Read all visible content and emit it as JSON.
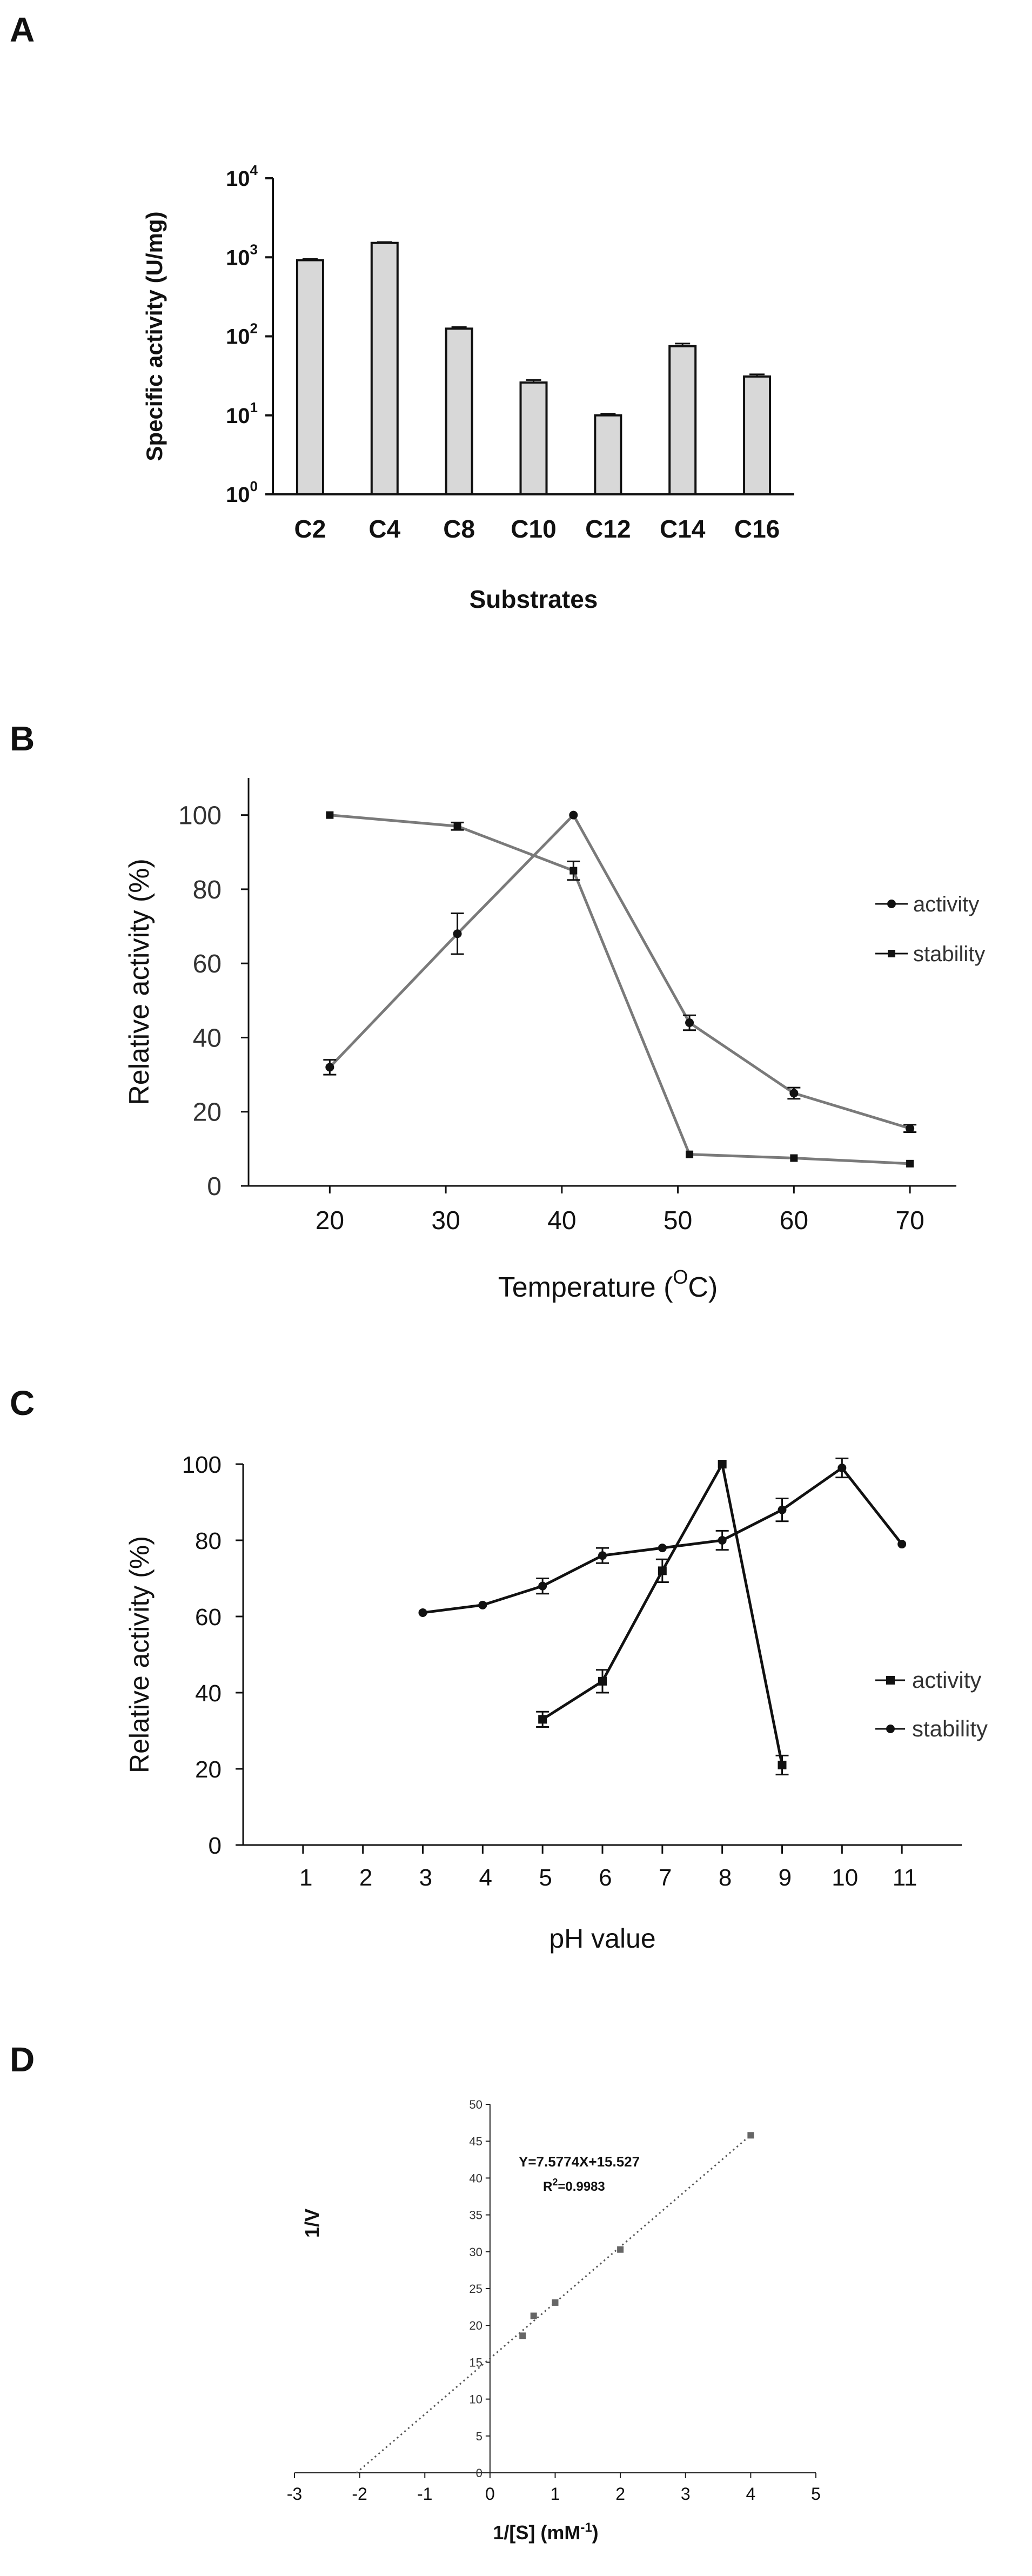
{
  "panels": {
    "a": {
      "letter": "A"
    },
    "b": {
      "letter": "B"
    },
    "c": {
      "letter": "C"
    },
    "d": {
      "letter": "D"
    }
  },
  "chart_data": [
    {
      "id": "A",
      "type": "bar",
      "yscale": "log",
      "ylabel": "Specific activity (U/mg)",
      "xlabel": "Substrates",
      "categories": [
        "C2",
        "C4",
        "C8",
        "C10",
        "C12",
        "C14",
        "C16"
      ],
      "values": [
        920,
        1520,
        125,
        26,
        10,
        75,
        31
      ],
      "errors": [
        30,
        40,
        6,
        2,
        0.5,
        6,
        2
      ],
      "ylim": [
        1,
        10000
      ],
      "yticks": [
        {
          "base": "10",
          "exp": "0",
          "value": 1
        },
        {
          "base": "10",
          "exp": "1",
          "value": 10
        },
        {
          "base": "10",
          "exp": "2",
          "value": 100
        },
        {
          "base": "10",
          "exp": "3",
          "value": 1000
        },
        {
          "base": "10",
          "exp": "4",
          "value": 10000
        }
      ],
      "bar_color": "#d8d8d8"
    },
    {
      "id": "B",
      "type": "line",
      "xlabel": "Temperature (",
      "xlabel_sup": "O",
      "xlabel_tail": "C)",
      "ylabel": "Relative activity (%)",
      "xlim": [
        13,
        74
      ],
      "ylim": [
        0,
        110
      ],
      "xticks": [
        20,
        30,
        40,
        50,
        60,
        70
      ],
      "yticks": [
        0,
        20,
        40,
        60,
        80,
        100
      ],
      "series": [
        {
          "name": "activity",
          "marker": "circle",
          "x": [
            20,
            31,
            41,
            51,
            60,
            70
          ],
          "y": [
            32,
            68,
            100,
            44,
            25,
            15.5
          ],
          "err": [
            2,
            5.5,
            0,
            2,
            1.5,
            1
          ]
        },
        {
          "name": "stability",
          "marker": "square",
          "x": [
            20,
            31,
            41,
            51,
            60,
            70
          ],
          "y": [
            100,
            97,
            85,
            8.5,
            7.5,
            6
          ],
          "err": [
            0,
            1,
            2.5,
            0,
            0,
            0
          ]
        }
      ],
      "line_color": "#7a7a7a"
    },
    {
      "id": "C",
      "type": "line",
      "xlabel": "pH value",
      "ylabel": "Relative activity (%)",
      "xlim": [
        0,
        12
      ],
      "ylim": [
        0,
        100
      ],
      "xticks": [
        1,
        2,
        3,
        4,
        5,
        6,
        7,
        8,
        9,
        10,
        11
      ],
      "yticks": [
        0,
        20,
        40,
        60,
        80,
        100
      ],
      "series": [
        {
          "name": "activity",
          "marker": "square",
          "x": [
            5,
            6,
            7,
            8,
            9
          ],
          "y": [
            33,
            43,
            72,
            100,
            21
          ],
          "err": [
            2,
            3,
            3,
            0,
            2.5
          ]
        },
        {
          "name": "stability",
          "marker": "circle",
          "x": [
            3,
            4,
            5,
            6,
            7,
            8,
            9,
            10,
            11
          ],
          "y": [
            61,
            63,
            68,
            76,
            78,
            80,
            88,
            99,
            79
          ],
          "err": [
            0,
            0,
            2,
            2,
            0,
            2.5,
            3,
            2.5,
            0
          ]
        }
      ],
      "line_color": "#111111"
    },
    {
      "id": "D",
      "type": "scatter",
      "xlabel": "1/[S] (mM",
      "xlabel_sup": "-1",
      "xlabel_tail": ")",
      "ylabel": "1/V",
      "xlim": [
        -3,
        5
      ],
      "ylim": [
        0,
        50
      ],
      "xticks": [
        -3,
        -2,
        -1,
        0,
        1,
        2,
        3,
        4,
        5
      ],
      "yticks": [
        0,
        5,
        10,
        15,
        20,
        25,
        30,
        35,
        40,
        45,
        50
      ],
      "points": {
        "x": [
          0.5,
          0.67,
          1,
          2,
          4
        ],
        "y": [
          18.6,
          21.3,
          23.1,
          30.3,
          45.8
        ]
      },
      "fit": {
        "slope": 7.5774,
        "intercept": 15.527,
        "x_from": -2.05,
        "x_to": 4.0
      },
      "equation": "Y=7.5774X+15.527",
      "r2_label": "R",
      "r2_sup": "2",
      "r2_value": "=0.9983"
    }
  ]
}
